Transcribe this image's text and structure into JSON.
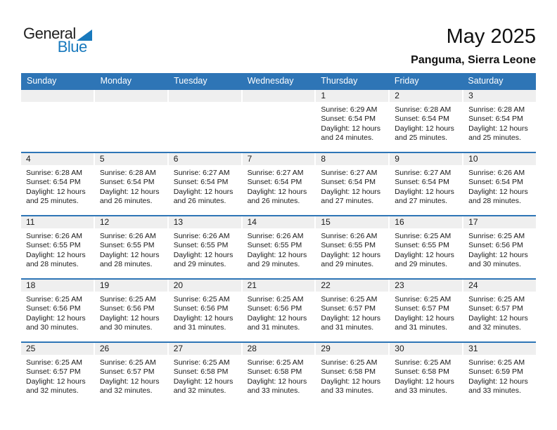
{
  "logo": {
    "part1": "General",
    "part2": "Blue"
  },
  "header": {
    "title": "May 2025",
    "subtitle": "Panguma, Sierra Leone"
  },
  "colors": {
    "accent_blue": "#2E75B6",
    "logo_blue": "#1879BD",
    "band_gray": "#EFEFEF",
    "text": "#1a1a1a"
  },
  "weekdays": [
    "Sunday",
    "Monday",
    "Tuesday",
    "Wednesday",
    "Thursday",
    "Friday",
    "Saturday"
  ],
  "calendar": {
    "weeks": [
      [
        null,
        null,
        null,
        null,
        {
          "day": "1",
          "sunrise": "Sunrise: 6:29 AM",
          "sunset": "Sunset: 6:54 PM",
          "daylight1": "Daylight: 12 hours",
          "daylight2": "and 24 minutes."
        },
        {
          "day": "2",
          "sunrise": "Sunrise: 6:28 AM",
          "sunset": "Sunset: 6:54 PM",
          "daylight1": "Daylight: 12 hours",
          "daylight2": "and 25 minutes."
        },
        {
          "day": "3",
          "sunrise": "Sunrise: 6:28 AM",
          "sunset": "Sunset: 6:54 PM",
          "daylight1": "Daylight: 12 hours",
          "daylight2": "and 25 minutes."
        }
      ],
      [
        {
          "day": "4",
          "sunrise": "Sunrise: 6:28 AM",
          "sunset": "Sunset: 6:54 PM",
          "daylight1": "Daylight: 12 hours",
          "daylight2": "and 25 minutes."
        },
        {
          "day": "5",
          "sunrise": "Sunrise: 6:28 AM",
          "sunset": "Sunset: 6:54 PM",
          "daylight1": "Daylight: 12 hours",
          "daylight2": "and 26 minutes."
        },
        {
          "day": "6",
          "sunrise": "Sunrise: 6:27 AM",
          "sunset": "Sunset: 6:54 PM",
          "daylight1": "Daylight: 12 hours",
          "daylight2": "and 26 minutes."
        },
        {
          "day": "7",
          "sunrise": "Sunrise: 6:27 AM",
          "sunset": "Sunset: 6:54 PM",
          "daylight1": "Daylight: 12 hours",
          "daylight2": "and 26 minutes."
        },
        {
          "day": "8",
          "sunrise": "Sunrise: 6:27 AM",
          "sunset": "Sunset: 6:54 PM",
          "daylight1": "Daylight: 12 hours",
          "daylight2": "and 27 minutes."
        },
        {
          "day": "9",
          "sunrise": "Sunrise: 6:27 AM",
          "sunset": "Sunset: 6:54 PM",
          "daylight1": "Daylight: 12 hours",
          "daylight2": "and 27 minutes."
        },
        {
          "day": "10",
          "sunrise": "Sunrise: 6:26 AM",
          "sunset": "Sunset: 6:54 PM",
          "daylight1": "Daylight: 12 hours",
          "daylight2": "and 28 minutes."
        }
      ],
      [
        {
          "day": "11",
          "sunrise": "Sunrise: 6:26 AM",
          "sunset": "Sunset: 6:55 PM",
          "daylight1": "Daylight: 12 hours",
          "daylight2": "and 28 minutes."
        },
        {
          "day": "12",
          "sunrise": "Sunrise: 6:26 AM",
          "sunset": "Sunset: 6:55 PM",
          "daylight1": "Daylight: 12 hours",
          "daylight2": "and 28 minutes."
        },
        {
          "day": "13",
          "sunrise": "Sunrise: 6:26 AM",
          "sunset": "Sunset: 6:55 PM",
          "daylight1": "Daylight: 12 hours",
          "daylight2": "and 29 minutes."
        },
        {
          "day": "14",
          "sunrise": "Sunrise: 6:26 AM",
          "sunset": "Sunset: 6:55 PM",
          "daylight1": "Daylight: 12 hours",
          "daylight2": "and 29 minutes."
        },
        {
          "day": "15",
          "sunrise": "Sunrise: 6:26 AM",
          "sunset": "Sunset: 6:55 PM",
          "daylight1": "Daylight: 12 hours",
          "daylight2": "and 29 minutes."
        },
        {
          "day": "16",
          "sunrise": "Sunrise: 6:25 AM",
          "sunset": "Sunset: 6:55 PM",
          "daylight1": "Daylight: 12 hours",
          "daylight2": "and 29 minutes."
        },
        {
          "day": "17",
          "sunrise": "Sunrise: 6:25 AM",
          "sunset": "Sunset: 6:56 PM",
          "daylight1": "Daylight: 12 hours",
          "daylight2": "and 30 minutes."
        }
      ],
      [
        {
          "day": "18",
          "sunrise": "Sunrise: 6:25 AM",
          "sunset": "Sunset: 6:56 PM",
          "daylight1": "Daylight: 12 hours",
          "daylight2": "and 30 minutes."
        },
        {
          "day": "19",
          "sunrise": "Sunrise: 6:25 AM",
          "sunset": "Sunset: 6:56 PM",
          "daylight1": "Daylight: 12 hours",
          "daylight2": "and 30 minutes."
        },
        {
          "day": "20",
          "sunrise": "Sunrise: 6:25 AM",
          "sunset": "Sunset: 6:56 PM",
          "daylight1": "Daylight: 12 hours",
          "daylight2": "and 31 minutes."
        },
        {
          "day": "21",
          "sunrise": "Sunrise: 6:25 AM",
          "sunset": "Sunset: 6:56 PM",
          "daylight1": "Daylight: 12 hours",
          "daylight2": "and 31 minutes."
        },
        {
          "day": "22",
          "sunrise": "Sunrise: 6:25 AM",
          "sunset": "Sunset: 6:57 PM",
          "daylight1": "Daylight: 12 hours",
          "daylight2": "and 31 minutes."
        },
        {
          "day": "23",
          "sunrise": "Sunrise: 6:25 AM",
          "sunset": "Sunset: 6:57 PM",
          "daylight1": "Daylight: 12 hours",
          "daylight2": "and 31 minutes."
        },
        {
          "day": "24",
          "sunrise": "Sunrise: 6:25 AM",
          "sunset": "Sunset: 6:57 PM",
          "daylight1": "Daylight: 12 hours",
          "daylight2": "and 32 minutes."
        }
      ],
      [
        {
          "day": "25",
          "sunrise": "Sunrise: 6:25 AM",
          "sunset": "Sunset: 6:57 PM",
          "daylight1": "Daylight: 12 hours",
          "daylight2": "and 32 minutes."
        },
        {
          "day": "26",
          "sunrise": "Sunrise: 6:25 AM",
          "sunset": "Sunset: 6:57 PM",
          "daylight1": "Daylight: 12 hours",
          "daylight2": "and 32 minutes."
        },
        {
          "day": "27",
          "sunrise": "Sunrise: 6:25 AM",
          "sunset": "Sunset: 6:58 PM",
          "daylight1": "Daylight: 12 hours",
          "daylight2": "and 32 minutes."
        },
        {
          "day": "28",
          "sunrise": "Sunrise: 6:25 AM",
          "sunset": "Sunset: 6:58 PM",
          "daylight1": "Daylight: 12 hours",
          "daylight2": "and 33 minutes."
        },
        {
          "day": "29",
          "sunrise": "Sunrise: 6:25 AM",
          "sunset": "Sunset: 6:58 PM",
          "daylight1": "Daylight: 12 hours",
          "daylight2": "and 33 minutes."
        },
        {
          "day": "30",
          "sunrise": "Sunrise: 6:25 AM",
          "sunset": "Sunset: 6:58 PM",
          "daylight1": "Daylight: 12 hours",
          "daylight2": "and 33 minutes."
        },
        {
          "day": "31",
          "sunrise": "Sunrise: 6:25 AM",
          "sunset": "Sunset: 6:59 PM",
          "daylight1": "Daylight: 12 hours",
          "daylight2": "and 33 minutes."
        }
      ]
    ]
  }
}
